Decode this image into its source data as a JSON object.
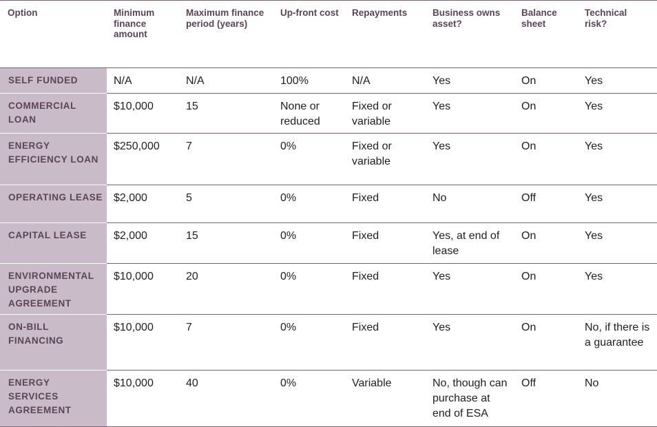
{
  "table": {
    "headers": [
      "Option",
      "Minimum finance amount",
      "Maximum finance period (years)",
      "Up-front cost",
      "Repayments",
      "Business owns asset?",
      "Balance sheet",
      "Technical risk?"
    ],
    "rows": [
      [
        "SELF FUNDED",
        "N/A",
        "N/A",
        "100%",
        "N/A",
        "Yes",
        "On",
        "Yes"
      ],
      [
        "COMMERCIAL LOAN",
        "$10,000",
        "15",
        "None or reduced",
        "Fixed or variable",
        "Yes",
        "On",
        "Yes"
      ],
      [
        "ENERGY EFFICIENCY LOAN",
        "$250,000",
        "7",
        "0%",
        "Fixed or variable",
        "Yes",
        "On",
        "Yes"
      ],
      [
        "OPERATING LEASE",
        "$2,000",
        "5",
        "0%",
        "Fixed",
        "No",
        "Off",
        "Yes"
      ],
      [
        "CAPITAL LEASE",
        "$2,000",
        "15",
        "0%",
        "Fixed",
        "Yes, at end of lease",
        "On",
        "Yes"
      ],
      [
        "ENVIRONMENTAL UPGRADE AGREEMENT",
        "$10,000",
        "20",
        "0%",
        "Fixed",
        "Yes",
        "On",
        "Yes"
      ],
      [
        "ON-BILL FINANCING",
        "$10,000",
        "7",
        "0%",
        "Fixed",
        "Yes",
        "On",
        "No, if there is a guarantee"
      ],
      [
        "ENERGY SERVICES AGREEMENT",
        "$10,000",
        "40",
        "0%",
        "Variable",
        "No, though can purchase at end of ESA",
        "Off",
        "No"
      ]
    ]
  },
  "colors": {
    "header_text": "#5b4358",
    "option_cell_bg": "#c9bcc8",
    "rule_line": "#7a6178",
    "body_text": "#1e1e1e"
  }
}
